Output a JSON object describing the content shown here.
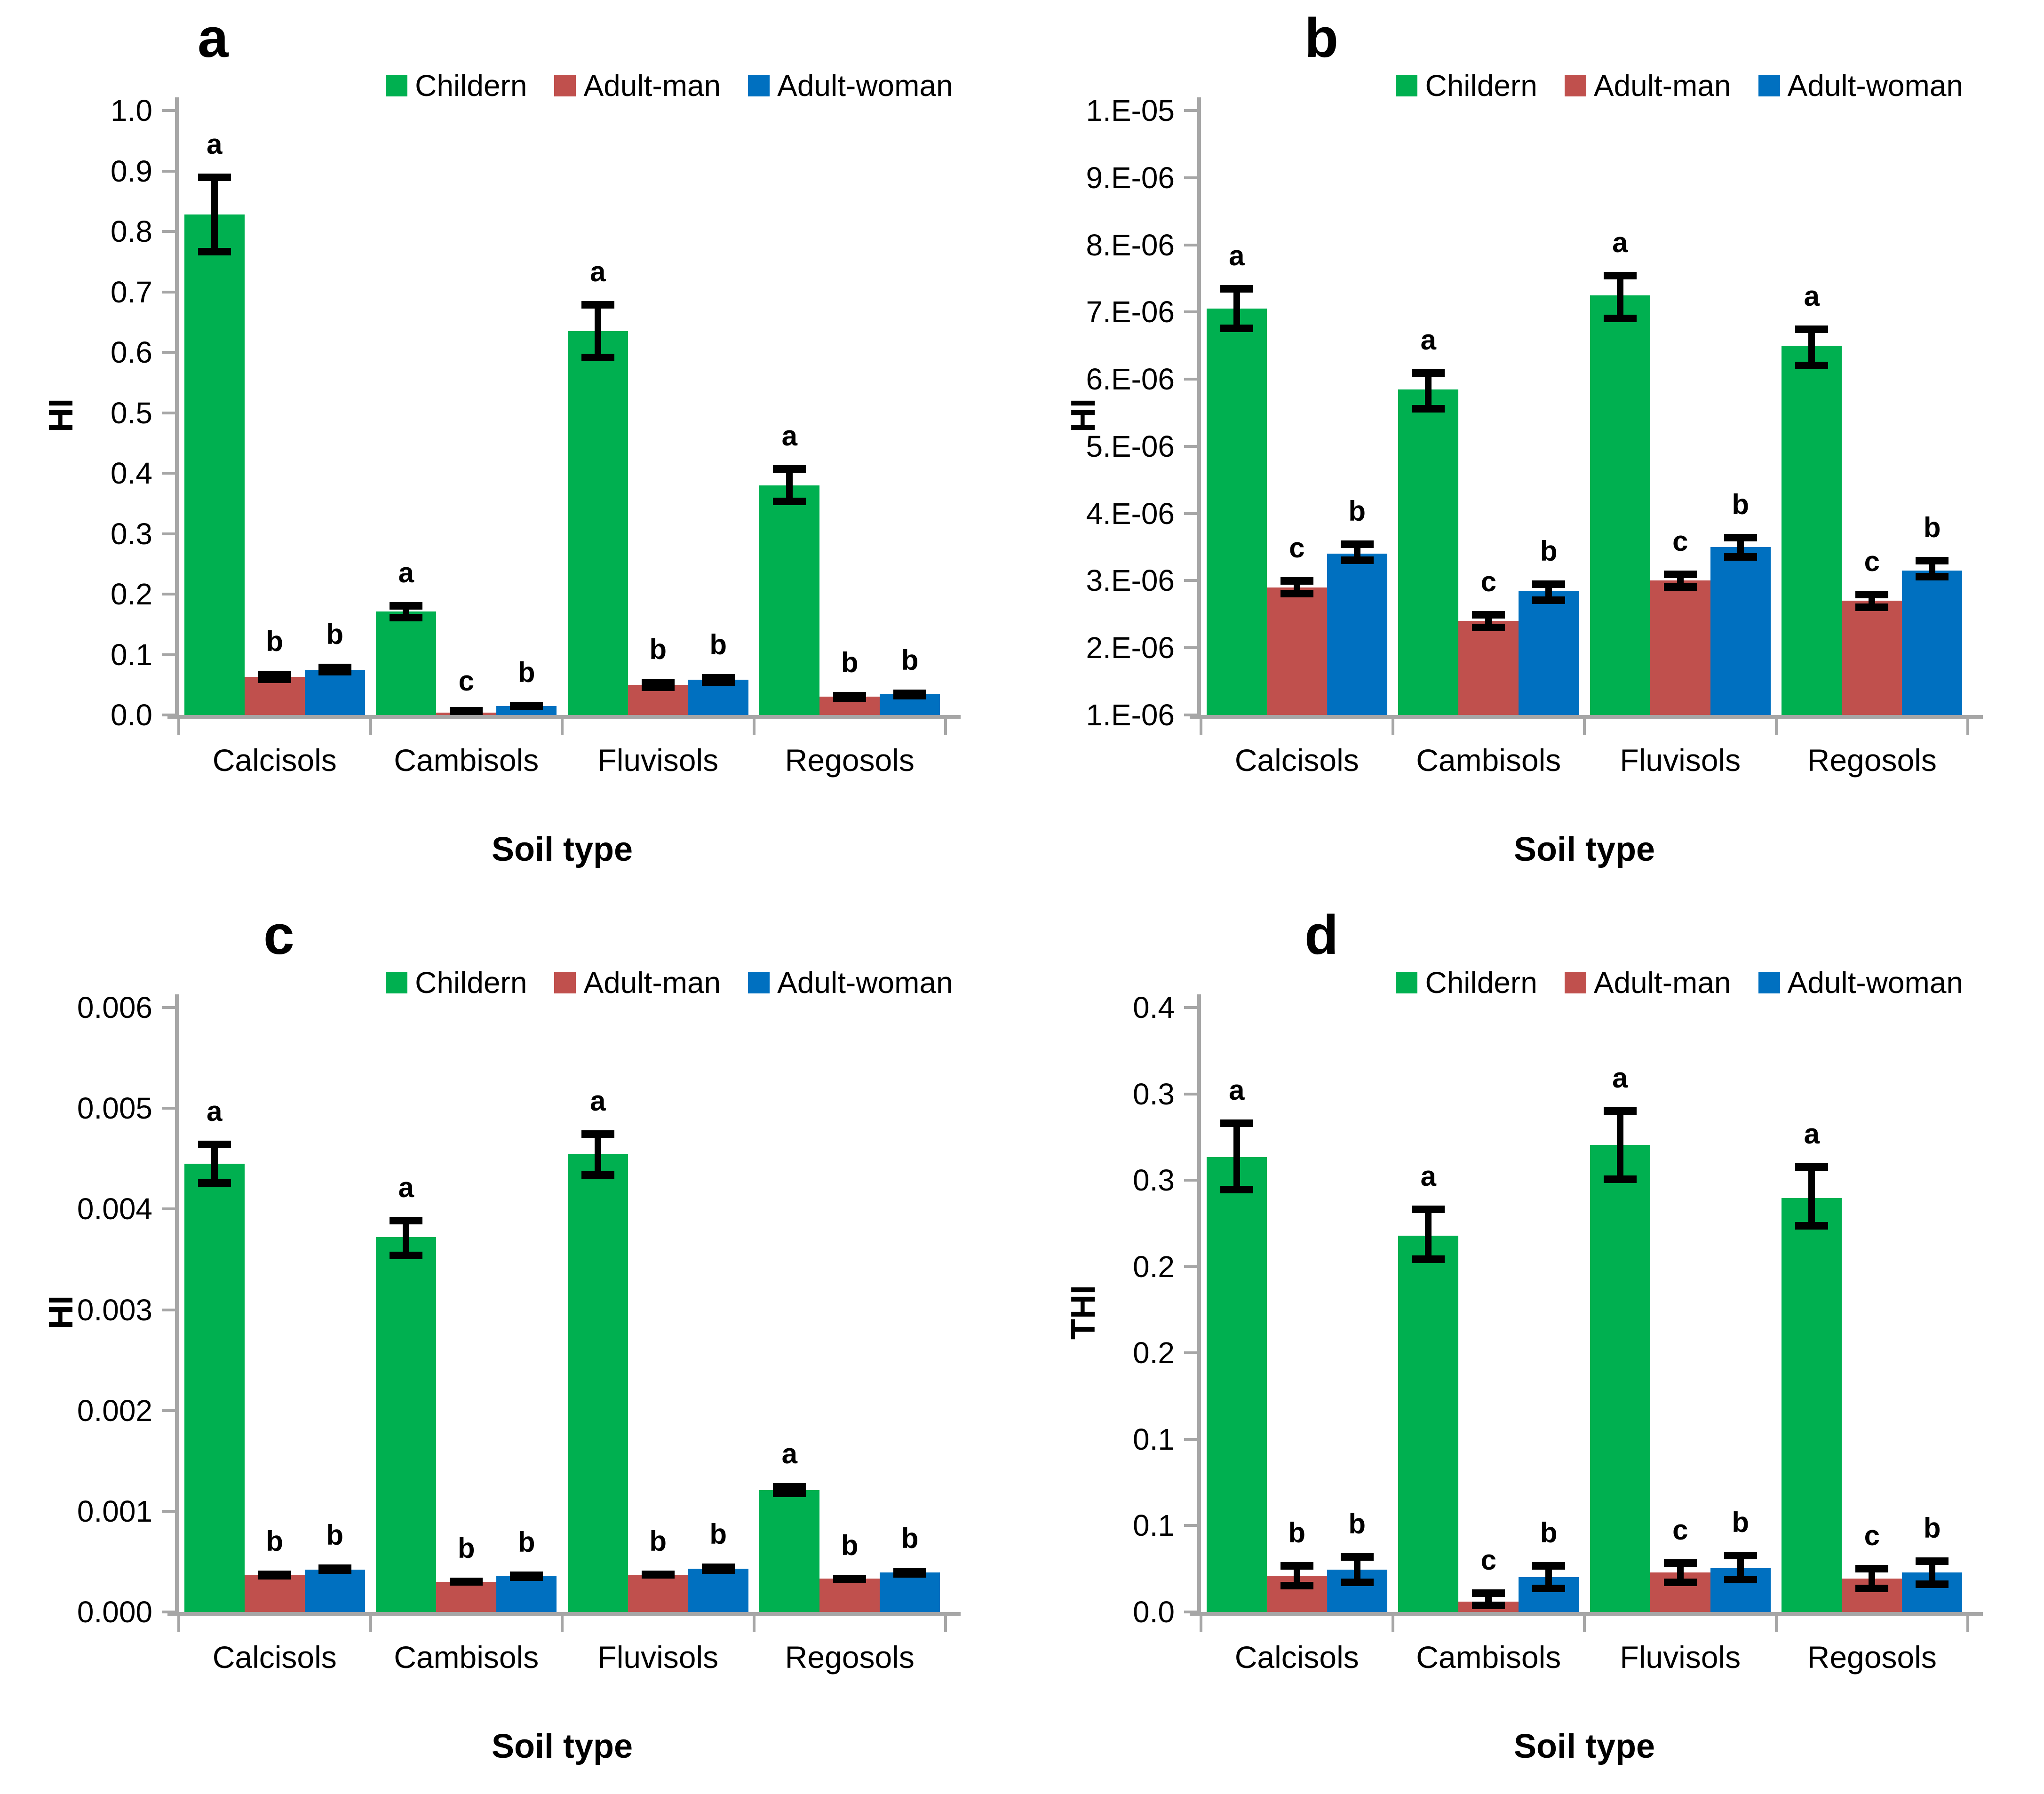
{
  "figure_background": "#ffffff",
  "colors": {
    "children": "#00B050",
    "adult_man": "#C0504D",
    "adult_woman": "#0070C0",
    "axis": "#A6A6A6",
    "error_bar": "#000000",
    "text": "#000000"
  },
  "legend": {
    "items": [
      {
        "label": "Childern",
        "color_key": "children"
      },
      {
        "label": "Adult-man",
        "color_key": "adult_man"
      },
      {
        "label": "Adult-woman",
        "color_key": "adult_woman"
      }
    ]
  },
  "categories": [
    "Calcisols",
    "Cambisols",
    "Fluvisols",
    "Regosols"
  ],
  "x_axis_title": "Soil type",
  "chart_data": [
    {
      "panel": "a",
      "type": "bar",
      "title": "",
      "xlabel": "Soil type",
      "ylabel": "HI",
      "ymin": 0,
      "ymax": 1.0,
      "grid": false,
      "legend_position": "top-center-inside",
      "categories": [
        "Calcisols",
        "Cambisols",
        "Fluvisols",
        "Regosols"
      ],
      "yticks": [
        {
          "v": 1.0,
          "label": "1.0"
        },
        {
          "v": 0.9,
          "label": "0.9"
        },
        {
          "v": 0.8,
          "label": "0.8"
        },
        {
          "v": 0.7,
          "label": "0.7"
        },
        {
          "v": 0.6,
          "label": "0.6"
        },
        {
          "v": 0.5,
          "label": "0.5"
        },
        {
          "v": 0.4,
          "label": "0.4"
        },
        {
          "v": 0.3,
          "label": "0.3"
        },
        {
          "v": 0.2,
          "label": "0.2"
        },
        {
          "v": 0.1,
          "label": "0.1"
        },
        {
          "v": 0.0,
          "label": "0.0"
        }
      ],
      "series": [
        {
          "name": "Childern",
          "color_key": "children",
          "values": [
            0.828,
            0.171,
            0.635,
            0.38
          ],
          "err_low": [
            0.76,
            0.155,
            0.585,
            0.347
          ],
          "err_high": [
            0.896,
            0.187,
            0.685,
            0.413
          ],
          "letters": [
            "a",
            "a",
            "a",
            "a"
          ]
        },
        {
          "name": "Adult-man",
          "color_key": "adult_man",
          "values": [
            0.063,
            0.004,
            0.05,
            0.03
          ],
          "err_low": [
            0.053,
            0.001,
            0.04,
            0.022
          ],
          "err_high": [
            0.073,
            0.008,
            0.06,
            0.038
          ],
          "letters": [
            "b",
            "c",
            "b",
            "b"
          ]
        },
        {
          "name": "Adult-woman",
          "color_key": "adult_woman",
          "values": [
            0.075,
            0.015,
            0.058,
            0.034
          ],
          "err_low": [
            0.065,
            0.008,
            0.048,
            0.026
          ],
          "err_high": [
            0.085,
            0.022,
            0.068,
            0.042
          ],
          "letters": [
            "b",
            "b",
            "b",
            "b"
          ]
        }
      ]
    },
    {
      "panel": "b",
      "type": "bar",
      "title": "",
      "xlabel": "Soil type",
      "ylabel": "HI",
      "ymin": 1e-06,
      "ymax": 1e-05,
      "grid": false,
      "legend_position": "top-right-inside",
      "categories": [
        "Calcisols",
        "Cambisols",
        "Fluvisols",
        "Regosols"
      ],
      "yticks": [
        {
          "v": 1e-05,
          "label": "1.E-05"
        },
        {
          "v": 9e-06,
          "label": "9.E-06"
        },
        {
          "v": 8e-06,
          "label": "8.E-06"
        },
        {
          "v": 7e-06,
          "label": "7.E-06"
        },
        {
          "v": 6e-06,
          "label": "6.E-06"
        },
        {
          "v": 5e-06,
          "label": "5.E-06"
        },
        {
          "v": 4e-06,
          "label": "4.E-06"
        },
        {
          "v": 3e-06,
          "label": "3.E-06"
        },
        {
          "v": 2e-06,
          "label": "2.E-06"
        },
        {
          "v": 1e-06,
          "label": "1.E-06"
        }
      ],
      "series": [
        {
          "name": "Childern",
          "color_key": "children",
          "values": [
            7.05e-06,
            5.85e-06,
            7.25e-06,
            6.5e-06
          ],
          "err_low": [
            6.7e-06,
            5.5e-06,
            6.85e-06,
            6.15e-06
          ],
          "err_high": [
            7.4e-06,
            6.15e-06,
            7.6e-06,
            6.8e-06
          ],
          "letters": [
            "a",
            "a",
            "a",
            "a"
          ]
        },
        {
          "name": "Adult-man",
          "color_key": "adult_man",
          "values": [
            2.9e-06,
            2.4e-06,
            3e-06,
            2.7e-06
          ],
          "err_low": [
            2.75e-06,
            2.25e-06,
            2.85e-06,
            2.55e-06
          ],
          "err_high": [
            3.05e-06,
            2.55e-06,
            3.15e-06,
            2.85e-06
          ],
          "letters": [
            "c",
            "c",
            "c",
            "c"
          ]
        },
        {
          "name": "Adult-woman",
          "color_key": "adult_woman",
          "values": [
            3.4e-06,
            2.85e-06,
            3.5e-06,
            3.15e-06
          ],
          "err_low": [
            3.25e-06,
            2.65e-06,
            3.3e-06,
            3e-06
          ],
          "err_high": [
            3.6e-06,
            3e-06,
            3.7e-06,
            3.35e-06
          ],
          "letters": [
            "b",
            "b",
            "b",
            "b"
          ]
        }
      ]
    },
    {
      "panel": "c",
      "type": "bar",
      "title": "",
      "xlabel": "Soil type",
      "ylabel": "HI",
      "ymin": 0,
      "ymax": 0.006,
      "grid": false,
      "legend_position": "top-center-inside",
      "categories": [
        "Calcisols",
        "Cambisols",
        "Fluvisols",
        "Regosols"
      ],
      "yticks": [
        {
          "v": 0.006,
          "label": "0.006"
        },
        {
          "v": 0.005,
          "label": "0.005"
        },
        {
          "v": 0.004,
          "label": "0.004"
        },
        {
          "v": 0.003,
          "label": "0.003"
        },
        {
          "v": 0.002,
          "label": "0.002"
        },
        {
          "v": 0.001,
          "label": "0.001"
        },
        {
          "v": 0.0,
          "label": "0.000"
        }
      ],
      "series": [
        {
          "name": "Childern",
          "color_key": "children",
          "values": [
            0.00445,
            0.00372,
            0.00455,
            0.00121
          ],
          "err_low": [
            0.00422,
            0.0035,
            0.0043,
            0.00114
          ],
          "err_high": [
            0.00468,
            0.00392,
            0.00478,
            0.00128
          ],
          "letters": [
            "a",
            "a",
            "a",
            "a"
          ]
        },
        {
          "name": "Adult-man",
          "color_key": "adult_man",
          "values": [
            0.00037,
            0.0003,
            0.00037,
            0.00033
          ],
          "err_low": [
            0.00032,
            0.00026,
            0.00033,
            0.00029
          ],
          "err_high": [
            0.00041,
            0.00034,
            0.00041,
            0.00037
          ],
          "letters": [
            "b",
            "b",
            "b",
            "b"
          ]
        },
        {
          "name": "Adult-woman",
          "color_key": "adult_woman",
          "values": [
            0.00042,
            0.00036,
            0.00043,
            0.00039
          ],
          "err_low": [
            0.00038,
            0.00031,
            0.00038,
            0.00034
          ],
          "err_high": [
            0.00047,
            0.0004,
            0.00048,
            0.00044
          ],
          "letters": [
            "b",
            "b",
            "b",
            "b"
          ]
        }
      ]
    },
    {
      "panel": "d",
      "type": "bar",
      "title": "",
      "xlabel": "Soil type",
      "ylabel": "THI",
      "ymin": 0,
      "ymax": 0.4,
      "grid": false,
      "legend_position": "top-right-inside",
      "categories": [
        "Calcisols",
        "Cambisols",
        "Fluvisols",
        "Regosols"
      ],
      "yticks": [
        {
          "v": 0.4,
          "label": "0.4"
        },
        {
          "v": 0.3428571,
          "label": "0.3"
        },
        {
          "v": 0.2857143,
          "label": "0.3"
        },
        {
          "v": 0.2285714,
          "label": "0.2"
        },
        {
          "v": 0.1714286,
          "label": "0.2"
        },
        {
          "v": 0.1142857,
          "label": "0.1"
        },
        {
          "v": 0.0571429,
          "label": "0.1"
        },
        {
          "v": 0.0,
          "label": "0.0"
        }
      ],
      "series": [
        {
          "name": "Childern",
          "color_key": "children",
          "values": [
            0.301,
            0.249,
            0.309,
            0.274
          ],
          "err_low": [
            0.277,
            0.231,
            0.284,
            0.253
          ],
          "err_high": [
            0.326,
            0.269,
            0.334,
            0.297
          ],
          "letters": [
            "a",
            "a",
            "a",
            "a"
          ]
        },
        {
          "name": "Adult-man",
          "color_key": "adult_man",
          "values": [
            0.024,
            0.007,
            0.026,
            0.022
          ],
          "err_low": [
            0.015,
            0.002,
            0.017,
            0.013
          ],
          "err_high": [
            0.033,
            0.015,
            0.035,
            0.031
          ],
          "letters": [
            "b",
            "c",
            "c",
            "c"
          ]
        },
        {
          "name": "Adult-woman",
          "color_key": "adult_woman",
          "values": [
            0.028,
            0.023,
            0.029,
            0.026
          ],
          "err_low": [
            0.017,
            0.013,
            0.019,
            0.016
          ],
          "err_high": [
            0.039,
            0.033,
            0.04,
            0.036
          ],
          "letters": [
            "b",
            "b",
            "b",
            "b"
          ]
        }
      ]
    }
  ]
}
